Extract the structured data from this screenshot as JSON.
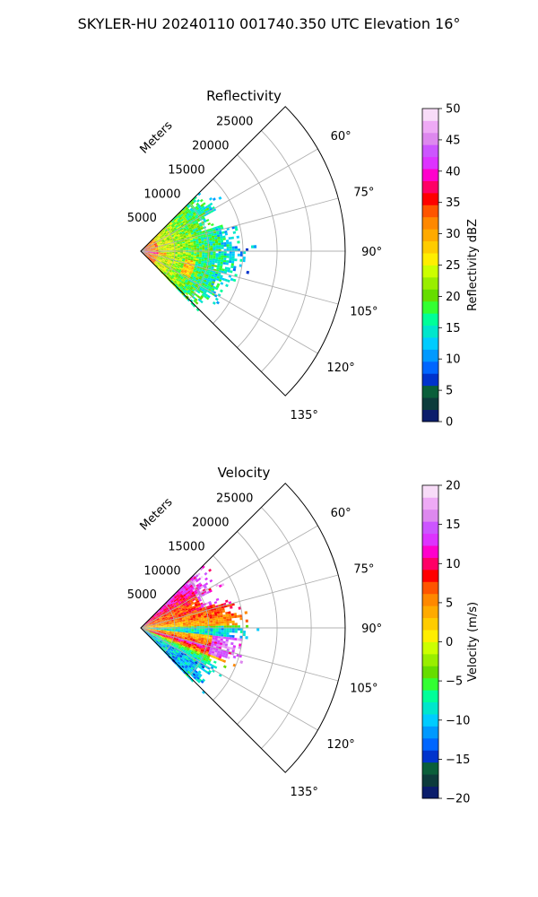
{
  "figure": {
    "title": "SKYLER-HU  20240110  001740.350 UTC Elevation 16°"
  },
  "chart_data": [
    {
      "type": "heatmap",
      "projection": "polar-sector",
      "title": "Reflectivity",
      "range_label": "Meters",
      "range_ticks": [
        5000,
        10000,
        15000,
        20000,
        25000
      ],
      "range_tick_labels": [
        "5000",
        "10000",
        "15000",
        "20000",
        "25000"
      ],
      "range_max": 30000,
      "azimuth_range_deg": [
        45,
        135
      ],
      "azimuth_ticks": [
        60,
        75,
        90,
        105,
        120,
        135
      ],
      "azimuth_tick_labels": [
        "60°",
        "75°",
        "90°",
        "105°",
        "120°",
        "135°"
      ],
      "grid": true,
      "data_extent_m": 14000,
      "colorbar": {
        "label": "Reflectivity dBZ",
        "min": 0,
        "max": 50,
        "ticks": [
          0,
          5,
          10,
          15,
          20,
          25,
          30,
          35,
          40,
          45,
          50
        ],
        "tick_labels": [
          "0",
          "5",
          "10",
          "15",
          "20",
          "25",
          "30",
          "35",
          "40",
          "45",
          "50"
        ],
        "colors": [
          "#0b1d6b",
          "#0d3b3b",
          "#0a5e3a",
          "#0033cc",
          "#0066ff",
          "#0099ff",
          "#00ccff",
          "#00e6cc",
          "#00ff99",
          "#33ff33",
          "#66dd00",
          "#99ee00",
          "#ccff00",
          "#ffee00",
          "#ffcc00",
          "#ffaa00",
          "#ff8800",
          "#ff5500",
          "#ff0000",
          "#ff0066",
          "#ff00cc",
          "#dd33ff",
          "#cc55ff",
          "#dd88ee",
          "#eeaaf5",
          "#f8dcf8"
        ]
      }
    },
    {
      "type": "heatmap",
      "projection": "polar-sector",
      "title": "Velocity",
      "range_label": "Meters",
      "range_ticks": [
        5000,
        10000,
        15000,
        20000,
        25000
      ],
      "range_tick_labels": [
        "5000",
        "10000",
        "15000",
        "20000",
        "25000"
      ],
      "range_max": 30000,
      "azimuth_range_deg": [
        45,
        135
      ],
      "azimuth_ticks": [
        60,
        75,
        90,
        105,
        120,
        135
      ],
      "azimuth_tick_labels": [
        "60°",
        "75°",
        "90°",
        "105°",
        "120°",
        "135°"
      ],
      "grid": true,
      "data_extent_m": 14000,
      "colorbar": {
        "label": "Velocity (m/s)",
        "min": -20,
        "max": 20,
        "ticks": [
          -20,
          -15,
          -10,
          -5,
          0,
          5,
          10,
          15,
          20
        ],
        "tick_labels": [
          "−20",
          "−15",
          "−10",
          "−5",
          "0",
          "5",
          "10",
          "15",
          "20"
        ],
        "colors": [
          "#0b1d6b",
          "#0d3b3b",
          "#0a5e3a",
          "#0033cc",
          "#0066ff",
          "#0099ff",
          "#00ccff",
          "#00e6cc",
          "#00ff99",
          "#33ff33",
          "#66dd00",
          "#99ee00",
          "#ccff00",
          "#ffee00",
          "#ffcc00",
          "#ffaa00",
          "#ff8800",
          "#ff5500",
          "#ff0000",
          "#ff0066",
          "#ff00cc",
          "#dd33ff",
          "#cc55ff",
          "#dd88ee",
          "#eeaaf5",
          "#f8dcf8"
        ]
      }
    }
  ]
}
